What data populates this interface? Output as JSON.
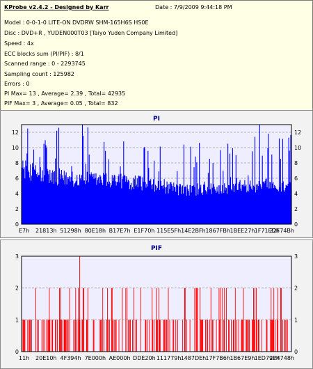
{
  "info": {
    "title": "KProbe v2.4.2 - Designed by Karr",
    "date": "Date : 7/9/2009 9:44:18 PM",
    "lines": [
      "Model : 0-0-1-0 LITE-ON DVDRW SHM-165H6S HS0E",
      "Disc : DVD+R , YUDEN000T03 [Taiyo Yuden Company Limited]",
      "Speed : 4x",
      "ECC blocks sum (PI/PIF) : 8/1",
      "Scanned range : 0 - 2293745",
      "Sampling count : 125982",
      "Errors : 0",
      "PI Max= 13 , Average= 2.39 , Total= 42935",
      "PIF Max= 3 , Average= 0.05 , Total= 832"
    ]
  },
  "colors": {
    "pi": "#0000ff",
    "pif": "#ff0000",
    "plot_bg": "#eeeeff",
    "grid": "#a0a0a0"
  },
  "chart_data": [
    {
      "type": "bar",
      "title": "PI",
      "ylim": [
        0,
        13
      ],
      "y_ticks": [
        "0",
        "2",
        "4",
        "6",
        "8",
        "10",
        "12"
      ],
      "x_ticks": [
        "E7h",
        "21813h",
        "51298h",
        "80E18h",
        "B17E7h",
        "E1F70h",
        "115E5Fh",
        "14E2BFh",
        "1867FBh",
        "1BEE27h",
        "1F71EDh",
        "22F74Bh"
      ],
      "grid": true,
      "samples": 400,
      "base_level": [
        [
          0,
          7.5
        ],
        [
          0.08,
          6.5
        ],
        [
          0.15,
          6.2
        ],
        [
          0.25,
          6.0
        ],
        [
          0.35,
          5.8
        ],
        [
          0.45,
          5.5
        ],
        [
          0.5,
          5.0
        ],
        [
          0.6,
          4.6
        ],
        [
          0.7,
          4.7
        ],
        [
          0.8,
          5.0
        ],
        [
          0.9,
          5.2
        ],
        [
          1,
          5.3
        ]
      ],
      "max": 13
    },
    {
      "type": "bar",
      "title": "PIF",
      "ylim": [
        0,
        3
      ],
      "y_ticks": [
        "0",
        "1",
        "2",
        "3"
      ],
      "x_ticks": [
        "11h",
        "20E10h",
        "4F394h",
        "7E000h",
        "AE000h",
        "DDE20h",
        "111779h",
        "1487DEh",
        "17F7B6h",
        "1B67E9h",
        "1ED79Fh",
        "224748h"
      ],
      "grid": true,
      "samples": 400,
      "max": 3
    }
  ]
}
